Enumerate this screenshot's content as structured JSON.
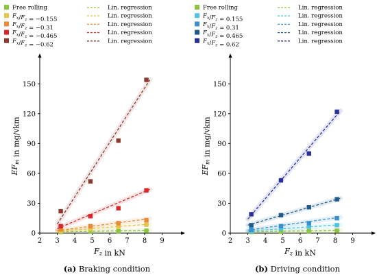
{
  "chart_data": [
    {
      "type": "scatter",
      "caption_label": "(a)",
      "caption_text": "Braking condition",
      "xlabel": "F_z in kN",
      "ylabel": "EF_m in mg/vkm",
      "xlim": [
        2,
        10
      ],
      "ylim": [
        0,
        175
      ],
      "xticks": [
        2,
        3,
        4,
        5,
        6,
        7,
        8,
        9
      ],
      "yticks": [
        0,
        30,
        60,
        90,
        120,
        150
      ],
      "grid": false,
      "legend_position": "top",
      "regression_label": "Lin. regression",
      "series": [
        {
          "name": "Free rolling",
          "color": "#8dc43f",
          "fit": [
            1.5,
            2.6
          ],
          "points": [
            [
              3.2,
              1.2
            ],
            [
              4.9,
              1.6
            ],
            [
              6.5,
              2.0
            ],
            [
              8.1,
              2.4
            ]
          ]
        },
        {
          "name": "F_x/F_z = −0.155",
          "color": "#e6c34a",
          "fit": [
            2.0,
            9.0
          ],
          "points": [
            [
              3.2,
              2.0
            ],
            [
              4.9,
              4.0
            ],
            [
              6.5,
              6.5
            ],
            [
              8.1,
              8.5
            ]
          ]
        },
        {
          "name": "F_x/F_z = −0.31",
          "color": "#e88a3a",
          "fit": [
            2.5,
            14.5
          ],
          "points": [
            [
              3.2,
              4.0
            ],
            [
              4.9,
              7.0
            ],
            [
              6.5,
              10.0
            ],
            [
              8.1,
              13.0
            ]
          ]
        },
        {
          "name": "F_x/F_z = −0.465",
          "color": "#d9262a",
          "fit": [
            4.5,
            44.0
          ],
          "points": [
            [
              3.2,
              7.0
            ],
            [
              4.9,
              17.0
            ],
            [
              6.5,
              25.0
            ],
            [
              8.1,
              43.0
            ]
          ]
        },
        {
          "name": "F_x/F_z = −0.62",
          "color": "#8b3a2e",
          "fit": [
            9.0,
            154.0
          ],
          "points": [
            [
              3.2,
              22.0
            ],
            [
              4.9,
              52.0
            ],
            [
              6.5,
              93.0
            ],
            [
              8.1,
              154.0
            ]
          ]
        }
      ]
    },
    {
      "type": "scatter",
      "caption_label": "(b)",
      "caption_text": "Driving condition",
      "xlabel": "F_z in kN",
      "ylabel": "EF_m in mg/vkm",
      "xlim": [
        2,
        10
      ],
      "ylim": [
        0,
        175
      ],
      "xticks": [
        2,
        3,
        4,
        5,
        6,
        7,
        8,
        9
      ],
      "yticks": [
        0,
        30,
        60,
        90,
        120,
        150
      ],
      "grid": false,
      "legend_position": "top",
      "regression_label": "Lin. regression",
      "series": [
        {
          "name": "Free rolling",
          "color": "#8dc43f",
          "fit": [
            1.5,
            2.6
          ],
          "points": [
            [
              3.2,
              1.2
            ],
            [
              4.9,
              1.6
            ],
            [
              6.5,
              2.0
            ],
            [
              8.1,
              2.4
            ]
          ]
        },
        {
          "name": "F_x/F_z = 0.155",
          "color": "#4fc3e0",
          "fit": [
            2.0,
            8.5
          ],
          "points": [
            [
              3.2,
              2.0
            ],
            [
              4.9,
              4.5
            ],
            [
              6.5,
              6.5
            ],
            [
              8.1,
              8.0
            ]
          ]
        },
        {
          "name": "F_x/F_z = 0.31",
          "color": "#3a8fd0",
          "fit": [
            3.0,
            16.0
          ],
          "points": [
            [
              3.2,
              3.5
            ],
            [
              4.9,
              7.0
            ],
            [
              6.5,
              10.0
            ],
            [
              8.1,
              15.0
            ]
          ]
        },
        {
          "name": "F_x/F_z = 0.465",
          "color": "#1f5a8a",
          "fit": [
            8.0,
            35.0
          ],
          "points": [
            [
              3.2,
              8.0
            ],
            [
              4.9,
              18.0
            ],
            [
              6.5,
              26.0
            ],
            [
              8.1,
              34.0
            ]
          ]
        },
        {
          "name": "F_x/F_z = 0.62",
          "color": "#2a2f9a",
          "fit": [
            14.0,
            123.0
          ],
          "points": [
            [
              3.2,
              19.0
            ],
            [
              4.9,
              53.0
            ],
            [
              6.5,
              80.0
            ],
            [
              8.1,
              122.0
            ]
          ]
        }
      ]
    }
  ]
}
